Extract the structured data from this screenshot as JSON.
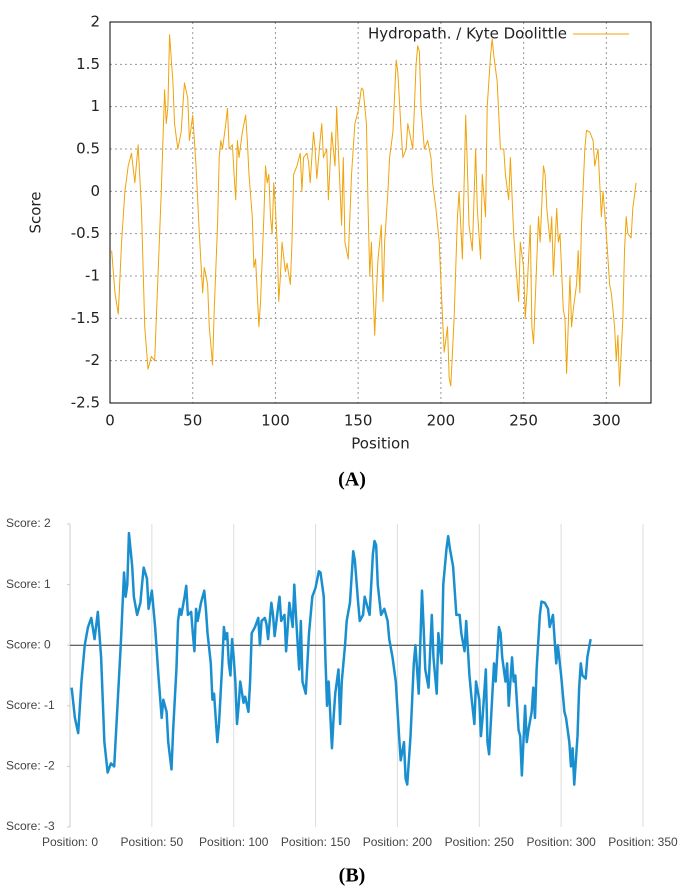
{
  "chart_data": [
    {
      "type": "line",
      "caption": "(A)",
      "xlabel": "Position",
      "ylabel": "Score",
      "xlim": [
        0,
        327
      ],
      "ylim": [
        -2.5,
        2
      ],
      "xticks": [
        0,
        50,
        100,
        150,
        200,
        250,
        300
      ],
      "yticks": [
        -2.5,
        -2,
        -1.5,
        -1,
        -0.5,
        0,
        0.5,
        1,
        1.5,
        2
      ],
      "grid": true,
      "legend": "top-right",
      "x": [
        1,
        3,
        5,
        7,
        9,
        11,
        13,
        15,
        17,
        19,
        21,
        23,
        25,
        27,
        29,
        31,
        33,
        34,
        35,
        36,
        38,
        39,
        41,
        43,
        44,
        45,
        47,
        48,
        50,
        52,
        54,
        56,
        57,
        59,
        60,
        62,
        63,
        65,
        66,
        67,
        68,
        70,
        71,
        72,
        74,
        75,
        76,
        77,
        78,
        80,
        82,
        83,
        84,
        86,
        87,
        88,
        90,
        91,
        93,
        94,
        95,
        96,
        97,
        98,
        99,
        100,
        101,
        102,
        103,
        104,
        106,
        107,
        109,
        110,
        111,
        113,
        115,
        116,
        117,
        119,
        120,
        121,
        123,
        124,
        125,
        127,
        128,
        129,
        131,
        132,
        134,
        136,
        137,
        138,
        140,
        141,
        142,
        144,
        146,
        148,
        150,
        152,
        153,
        155,
        156,
        157,
        158,
        160,
        161,
        162,
        164,
        165,
        166,
        168,
        169,
        171,
        173,
        174,
        176,
        177,
        179,
        180,
        182,
        183,
        185,
        186,
        187,
        188,
        190,
        192,
        194,
        195,
        197,
        199,
        201,
        202,
        204,
        205,
        206,
        208,
        210,
        211,
        213,
        215,
        216,
        217,
        219,
        221,
        222,
        224,
        225,
        227,
        228,
        230,
        231,
        232,
        234,
        235,
        236,
        238,
        239,
        241,
        242,
        244,
        245,
        247,
        248,
        250,
        251,
        252,
        254,
        255,
        256,
        258,
        259,
        260,
        262,
        263,
        264,
        266,
        267,
        268,
        270,
        271,
        272,
        274,
        275,
        276,
        278,
        279,
        280,
        282,
        283,
        284,
        285,
        287,
        288,
        290,
        292,
        293,
        295,
        296,
        297,
        298,
        300,
        302,
        303,
        305,
        306,
        307,
        308,
        310,
        311,
        312,
        313,
        315,
        316,
        318
      ],
      "series": [
        {
          "name": "Hydropath. / Kyte  Doolittle",
          "color": "#f0a30a",
          "values": [
            -0.7,
            -1.2,
            -1.45,
            -0.6,
            0,
            0.3,
            0.45,
            0.1,
            0.55,
            -0.2,
            -1.6,
            -2.1,
            -1.95,
            -2.0,
            -1.0,
            0.0,
            1.2,
            0.8,
            1.0,
            1.85,
            1.3,
            0.8,
            0.5,
            0.7,
            1.0,
            1.28,
            1.1,
            0.6,
            0.9,
            0.3,
            -0.5,
            -1.2,
            -0.9,
            -1.1,
            -1.6,
            -2.05,
            -1.4,
            -0.4,
            0.4,
            0.6,
            0.5,
            0.8,
            0.98,
            0.5,
            0.55,
            0.2,
            -0.1,
            0.6,
            0.4,
            0.7,
            0.9,
            0.6,
            0.2,
            -0.3,
            -0.9,
            -0.8,
            -1.6,
            -1.3,
            -0.3,
            0.3,
            0.1,
            0.2,
            -0.3,
            -0.5,
            0.1,
            -0.2,
            -0.6,
            -1.3,
            -1.0,
            -0.6,
            -0.95,
            -0.85,
            -1.1,
            -0.6,
            0.2,
            0.3,
            0.45,
            0.0,
            0.4,
            0.45,
            0.35,
            0.1,
            0.7,
            0.5,
            0.15,
            0.6,
            0.8,
            0.4,
            0.5,
            -0.1,
            0.7,
            0.3,
            1.0,
            0.5,
            -0.4,
            0.4,
            -0.6,
            -0.8,
            0.2,
            0.8,
            0.95,
            1.22,
            1.2,
            0.8,
            -0.2,
            -1.0,
            -0.6,
            -1.7,
            -1.2,
            -0.8,
            -0.4,
            -1.3,
            -0.6,
            0.0,
            0.4,
            0.7,
            1.55,
            1.4,
            0.7,
            0.4,
            0.5,
            0.8,
            0.6,
            0.5,
            1.5,
            1.72,
            1.65,
            1.0,
            0.5,
            0.6,
            0.4,
            0.1,
            -0.2,
            -0.6,
            -1.5,
            -1.9,
            -1.6,
            -2.2,
            -2.3,
            -1.5,
            -0.3,
            0.0,
            -0.8,
            0.9,
            0.3,
            -0.4,
            -0.7,
            0.5,
            -0.2,
            -0.8,
            0.2,
            -0.3,
            1.0,
            1.6,
            1.8,
            1.6,
            1.3,
            0.9,
            0.5,
            0.5,
            0.2,
            -0.1,
            0.4,
            -0.5,
            -0.8,
            -1.3,
            -0.6,
            -0.9,
            -1.5,
            -1.2,
            -0.4,
            -1.6,
            -1.8,
            -0.8,
            -0.3,
            -0.6,
            0.3,
            0.2,
            -0.2,
            -0.6,
            -0.3,
            -1.0,
            -0.2,
            -0.6,
            -0.5,
            -1.4,
            -1.5,
            -2.15,
            -1.0,
            -1.6,
            -1.4,
            -1.1,
            -0.7,
            -1.2,
            -0.4,
            0.5,
            0.72,
            0.7,
            0.6,
            0.3,
            0.5,
            0.1,
            -0.3,
            0.0,
            -0.5,
            -1.1,
            -1.2,
            -1.6,
            -2.0,
            -1.7,
            -2.3,
            -1.5,
            -0.7,
            -0.3,
            -0.5,
            -0.55,
            -0.2,
            0.1
          ]
        }
      ]
    },
    {
      "type": "line",
      "caption": "(B)",
      "color": "#1a8fcf",
      "xlim": [
        0,
        350
      ],
      "ylim": [
        -3,
        2
      ],
      "grid": "x",
      "zero_line": true,
      "xticks": [
        {
          "value": 0,
          "label": "Position: 0"
        },
        {
          "value": 50,
          "label": "Position: 50"
        },
        {
          "value": 100,
          "label": "Position: 100"
        },
        {
          "value": 150,
          "label": "Position: 150"
        },
        {
          "value": 200,
          "label": "Position: 200"
        },
        {
          "value": 250,
          "label": "Position: 250"
        },
        {
          "value": 300,
          "label": "Position: 300"
        },
        {
          "value": 350,
          "label": "Position: 350"
        }
      ],
      "yticks": [
        {
          "value": -3,
          "label": "Score: -3"
        },
        {
          "value": -2,
          "label": "Score: -2"
        },
        {
          "value": -1,
          "label": "Score: -1"
        },
        {
          "value": 0,
          "label": "Score: 0"
        },
        {
          "value": 1,
          "label": "Score: 1"
        },
        {
          "value": 2,
          "label": "Score: 2"
        }
      ],
      "x": [
        1,
        3,
        5,
        7,
        9,
        11,
        13,
        15,
        17,
        19,
        21,
        23,
        25,
        27,
        29,
        31,
        33,
        34,
        35,
        36,
        38,
        39,
        41,
        43,
        44,
        45,
        47,
        48,
        50,
        52,
        54,
        56,
        57,
        59,
        60,
        62,
        63,
        65,
        66,
        67,
        68,
        70,
        71,
        72,
        74,
        75,
        76,
        77,
        78,
        80,
        82,
        83,
        84,
        86,
        87,
        88,
        90,
        91,
        93,
        94,
        95,
        96,
        97,
        98,
        99,
        100,
        101,
        102,
        103,
        104,
        106,
        107,
        109,
        110,
        111,
        113,
        115,
        116,
        117,
        119,
        120,
        121,
        123,
        124,
        125,
        127,
        128,
        129,
        131,
        132,
        134,
        136,
        137,
        138,
        140,
        141,
        142,
        144,
        146,
        148,
        150,
        152,
        153,
        155,
        156,
        157,
        158,
        160,
        161,
        162,
        164,
        165,
        166,
        168,
        169,
        171,
        173,
        174,
        176,
        177,
        179,
        180,
        182,
        183,
        185,
        186,
        187,
        188,
        190,
        192,
        194,
        195,
        197,
        199,
        201,
        202,
        204,
        205,
        206,
        208,
        210,
        211,
        213,
        215,
        216,
        217,
        219,
        221,
        222,
        224,
        225,
        227,
        228,
        230,
        231,
        232,
        234,
        235,
        236,
        238,
        239,
        241,
        242,
        244,
        245,
        247,
        248,
        250,
        251,
        252,
        254,
        255,
        256,
        258,
        259,
        260,
        262,
        263,
        264,
        266,
        267,
        268,
        270,
        271,
        272,
        274,
        275,
        276,
        278,
        279,
        280,
        282,
        283,
        284,
        285,
        287,
        288,
        290,
        292,
        293,
        295,
        296,
        297,
        298,
        300,
        302,
        303,
        305,
        306,
        307,
        308,
        310,
        311,
        312,
        313,
        315,
        316,
        318
      ],
      "values": [
        -0.7,
        -1.2,
        -1.45,
        -0.6,
        0,
        0.3,
        0.45,
        0.1,
        0.55,
        -0.2,
        -1.6,
        -2.1,
        -1.95,
        -2.0,
        -1.0,
        0.0,
        1.2,
        0.8,
        1.0,
        1.85,
        1.3,
        0.8,
        0.5,
        0.7,
        1.0,
        1.28,
        1.1,
        0.6,
        0.9,
        0.3,
        -0.5,
        -1.2,
        -0.9,
        -1.1,
        -1.6,
        -2.05,
        -1.4,
        -0.4,
        0.4,
        0.6,
        0.5,
        0.8,
        0.98,
        0.5,
        0.55,
        0.2,
        -0.1,
        0.6,
        0.4,
        0.7,
        0.9,
        0.6,
        0.2,
        -0.3,
        -0.9,
        -0.8,
        -1.6,
        -1.3,
        -0.3,
        0.3,
        0.1,
        0.2,
        -0.3,
        -0.5,
        0.1,
        -0.2,
        -0.6,
        -1.3,
        -1.0,
        -0.6,
        -0.95,
        -0.85,
        -1.1,
        -0.6,
        0.2,
        0.3,
        0.45,
        0.0,
        0.4,
        0.45,
        0.35,
        0.1,
        0.7,
        0.5,
        0.15,
        0.6,
        0.8,
        0.4,
        0.5,
        -0.1,
        0.7,
        0.3,
        1.0,
        0.5,
        -0.4,
        0.4,
        -0.6,
        -0.8,
        0.2,
        0.8,
        0.95,
        1.22,
        1.2,
        0.8,
        -0.2,
        -1.0,
        -0.6,
        -1.7,
        -1.2,
        -0.8,
        -0.4,
        -1.3,
        -0.6,
        0.0,
        0.4,
        0.7,
        1.55,
        1.4,
        0.7,
        0.4,
        0.5,
        0.8,
        0.6,
        0.5,
        1.5,
        1.72,
        1.65,
        1.0,
        0.5,
        0.6,
        0.4,
        0.1,
        -0.2,
        -0.6,
        -1.5,
        -1.9,
        -1.6,
        -2.2,
        -2.3,
        -1.5,
        -0.3,
        0.0,
        -0.8,
        0.9,
        0.3,
        -0.4,
        -0.7,
        0.5,
        -0.2,
        -0.8,
        0.2,
        -0.3,
        1.0,
        1.6,
        1.8,
        1.6,
        1.3,
        0.9,
        0.5,
        0.5,
        0.2,
        -0.1,
        0.4,
        -0.5,
        -0.8,
        -1.3,
        -0.6,
        -0.9,
        -1.5,
        -1.2,
        -0.4,
        -1.6,
        -1.8,
        -0.8,
        -0.3,
        -0.6,
        0.3,
        0.2,
        -0.2,
        -0.6,
        -0.3,
        -1.0,
        -0.2,
        -0.6,
        -0.5,
        -1.4,
        -1.5,
        -2.15,
        -1.0,
        -1.6,
        -1.4,
        -1.1,
        -0.7,
        -1.2,
        -0.4,
        0.5,
        0.72,
        0.7,
        0.6,
        0.3,
        0.5,
        0.1,
        -0.3,
        0.0,
        -0.5,
        -1.1,
        -1.2,
        -1.6,
        -2.0,
        -1.7,
        -2.3,
        -1.5,
        -0.7,
        -0.3,
        -0.5,
        -0.55,
        -0.2,
        0.1
      ]
    }
  ]
}
